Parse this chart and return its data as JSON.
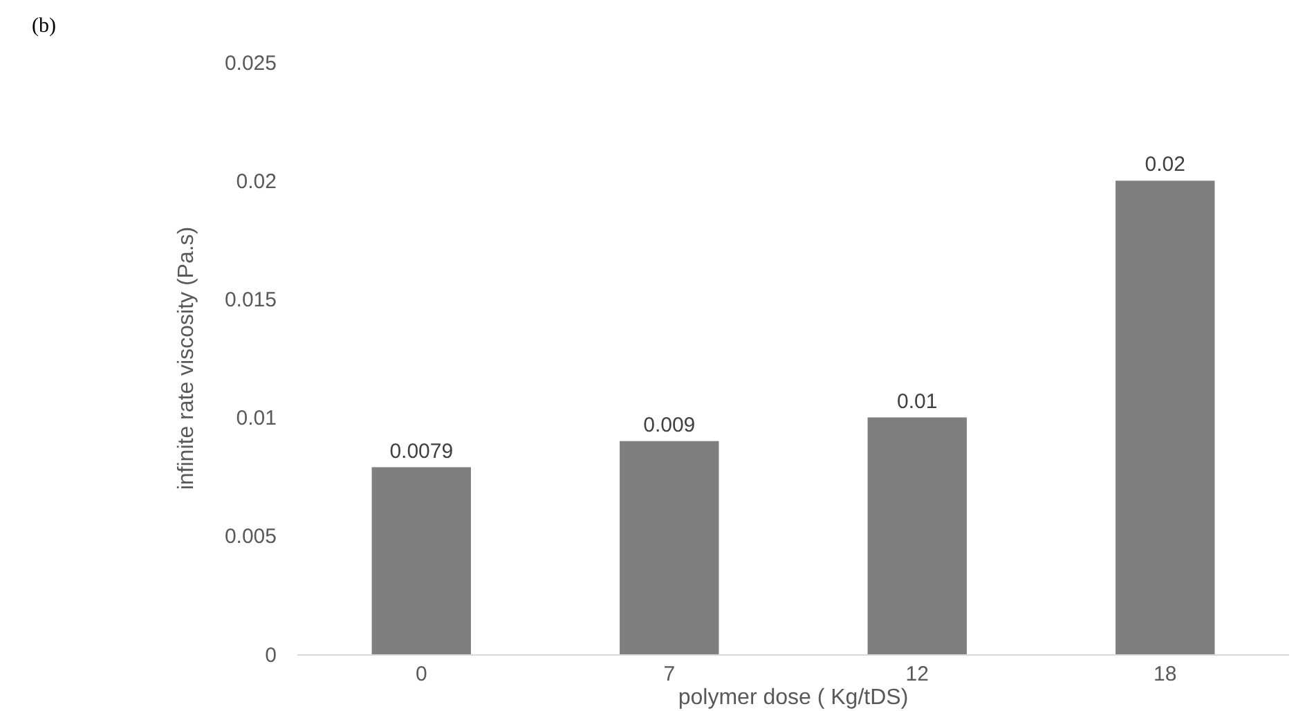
{
  "chart_data": {
    "type": "bar",
    "categories": [
      "0",
      "7",
      "12",
      "18"
    ],
    "values": [
      0.0079,
      0.009,
      0.01,
      0.02
    ],
    "color": "#7f7f7f",
    "xlabel": "polymer dose ( Kg/tDS)",
    "ylabel": "infinite rate viscosity (Pa.s)",
    "ylim": [
      0,
      0.025
    ],
    "yticks": [
      0,
      0.005,
      0.01,
      0.015,
      0.02,
      0.025
    ],
    "data_labels": true,
    "grid": false,
    "annotations": [
      "(b)"
    ]
  }
}
